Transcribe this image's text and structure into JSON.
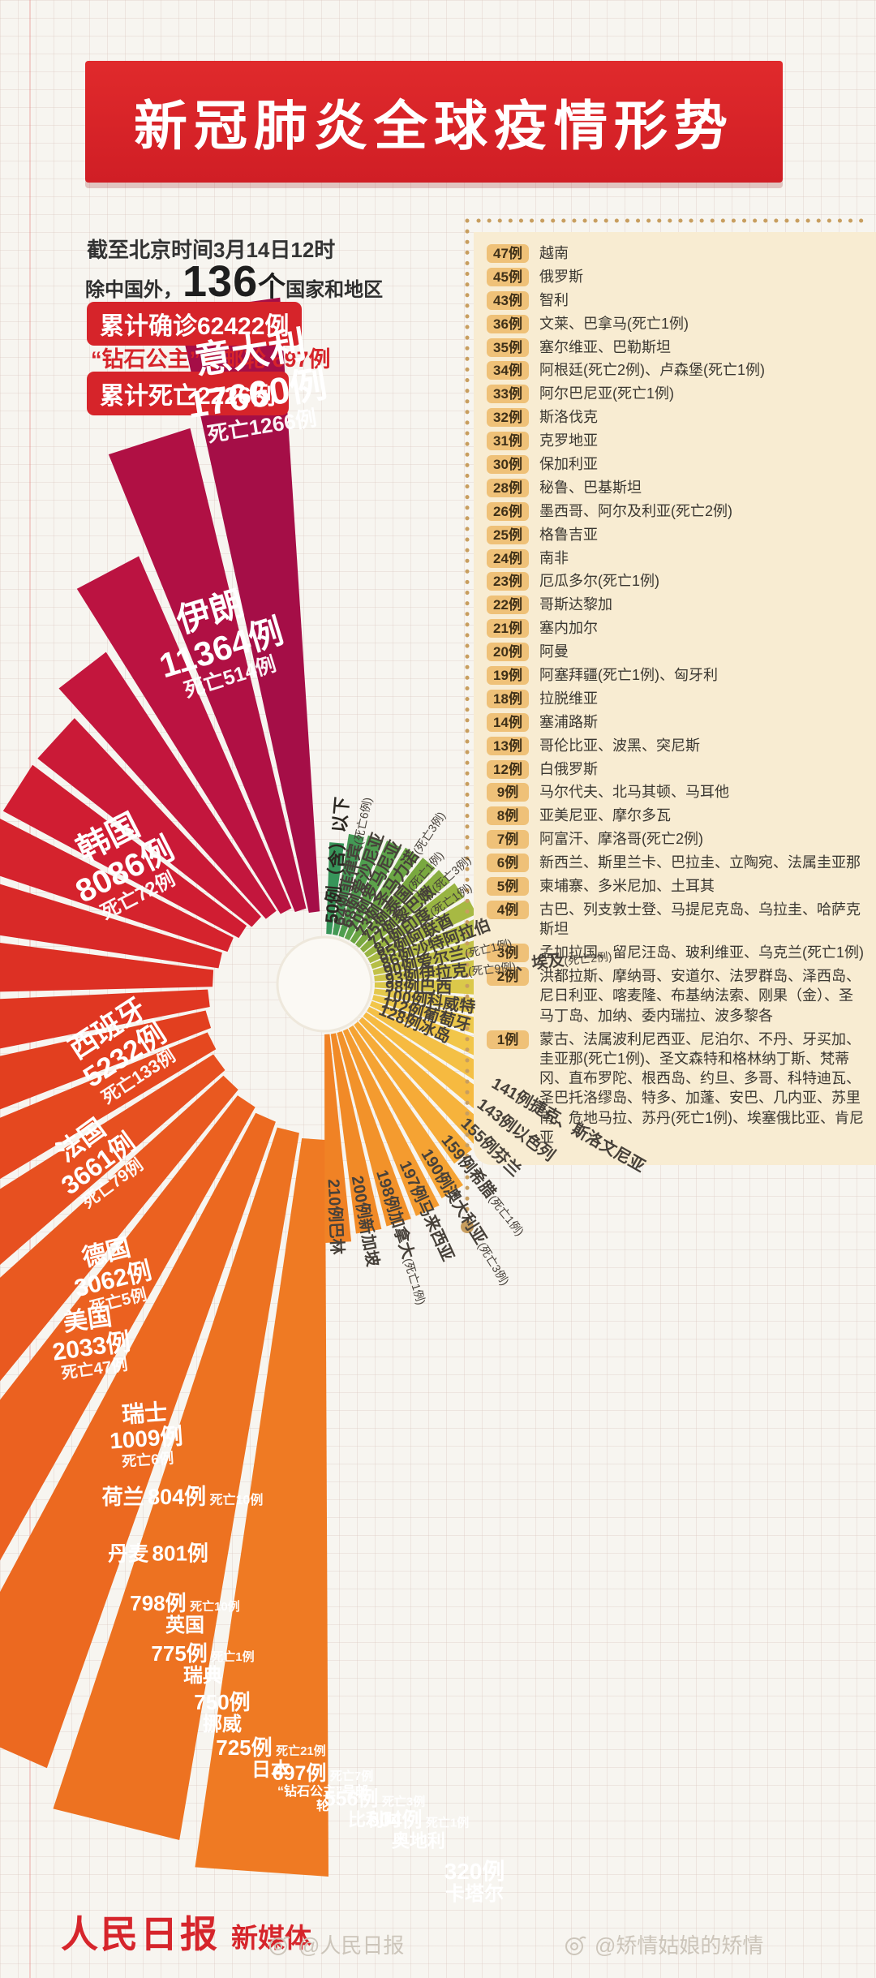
{
  "header": {
    "title": "新冠肺炎全球疫情形势",
    "bg_color": "#D6242A"
  },
  "stats": {
    "as_of": "截至北京时间3月14日12时",
    "except_prefix": "除中国外，",
    "country_count": "136",
    "count_unit": "个",
    "count_suffix": "国家和地区",
    "confirmed_badge": "累计确诊62422例",
    "cruise_line": "“钻石公主”号邮轮 697例",
    "death_badge": "累计死亡2226例",
    "accent_color": "#D6242A"
  },
  "panel": {
    "bg_color": "#F8ECD2",
    "badge_color": "#EFC178",
    "rows": [
      {
        "badge": "47例",
        "text": "越南"
      },
      {
        "badge": "45例",
        "text": "俄罗斯"
      },
      {
        "badge": "43例",
        "text": "智利"
      },
      {
        "badge": "36例",
        "text": "文莱、巴拿马(死亡1例)"
      },
      {
        "badge": "35例",
        "text": "塞尔维亚、巴勒斯坦"
      },
      {
        "badge": "34例",
        "text": "阿根廷(死亡2例)、卢森堡(死亡1例)"
      },
      {
        "badge": "33例",
        "text": "阿尔巴尼亚(死亡1例)"
      },
      {
        "badge": "32例",
        "text": "斯洛伐克"
      },
      {
        "badge": "31例",
        "text": "克罗地亚"
      },
      {
        "badge": "30例",
        "text": "保加利亚"
      },
      {
        "badge": "28例",
        "text": "秘鲁、巴基斯坦"
      },
      {
        "badge": "26例",
        "text": "墨西哥、阿尔及利亚(死亡2例)"
      },
      {
        "badge": "25例",
        "text": "格鲁吉亚"
      },
      {
        "badge": "24例",
        "text": "南非"
      },
      {
        "badge": "23例",
        "text": "厄瓜多尔(死亡1例)"
      },
      {
        "badge": "22例",
        "text": "哥斯达黎加"
      },
      {
        "badge": "21例",
        "text": "塞内加尔"
      },
      {
        "badge": "20例",
        "text": "阿曼"
      },
      {
        "badge": "19例",
        "text": "阿塞拜疆(死亡1例)、匈牙利"
      },
      {
        "badge": "18例",
        "text": "拉脱维亚"
      },
      {
        "badge": "14例",
        "text": "塞浦路斯"
      },
      {
        "badge": "13例",
        "text": "哥伦比亚、波黑、突尼斯"
      },
      {
        "badge": "12例",
        "text": "白俄罗斯"
      },
      {
        "badge": "9例",
        "text": "马尔代夫、北马其顿、马耳他"
      },
      {
        "badge": "8例",
        "text": "亚美尼亚、摩尔多瓦"
      },
      {
        "badge": "7例",
        "text": "阿富汗、摩洛哥(死亡2例)"
      },
      {
        "badge": "6例",
        "text": "新西兰、斯里兰卡、巴拉圭、立陶宛、法属圭亚那"
      },
      {
        "badge": "5例",
        "text": "柬埔寨、多米尼加、土耳其"
      },
      {
        "badge": "4例",
        "text": "古巴、列支敦士登、马提尼克岛、乌拉圭、哈萨克斯坦"
      },
      {
        "badge": "3例",
        "text": "孟加拉国、留尼汪岛、玻利维亚、乌克兰(死亡1例)"
      },
      {
        "badge": "2例",
        "text": "洪都拉斯、摩纳哥、安道尔、法罗群岛、泽西岛、尼日利亚、喀麦隆、布基纳法索、刚果（金）、圣马丁岛、加纳、委内瑞拉、波多黎各"
      },
      {
        "badge": "1例",
        "text": "蒙古、法属波利尼西亚、尼泊尔、不丹、牙买加、圭亚那(死亡1例)、圣文森特和格林纳丁斯、梵蒂冈、直布罗陀、根西岛、约旦、多哥、科特迪瓦、圣巴托洛缪岛、特多、加蓬、安巴、几内亚、苏里南、危地马拉、苏丹(死亡1例)、埃塞俄比亚、肯尼亚"
      }
    ]
  },
  "chart_data": {
    "type": "spiral_fan_chart",
    "title": "新冠肺炎全球疫情形势",
    "unit": "例",
    "major": [
      {
        "name": "意大利",
        "cases": 17660,
        "deaths": 1266
      },
      {
        "name": "伊朗",
        "cases": 11364,
        "deaths": 514
      },
      {
        "name": "韩国",
        "cases": 8086,
        "deaths": 72
      },
      {
        "name": "西班牙",
        "cases": 5232,
        "deaths": 133
      },
      {
        "name": "法国",
        "cases": 3661,
        "deaths": 79
      },
      {
        "name": "德国",
        "cases": 3062,
        "deaths": 5
      },
      {
        "name": "美国",
        "cases": 2033,
        "deaths": 47
      },
      {
        "name": "瑞士",
        "cases": 1009,
        "deaths": 6
      },
      {
        "name": "荷兰",
        "cases": 804,
        "deaths": 10
      },
      {
        "name": "丹麦",
        "cases": 801,
        "deaths": null
      },
      {
        "name": "英国",
        "cases": 798,
        "deaths": 10
      },
      {
        "name": "瑞典",
        "cases": 775,
        "deaths": 1
      },
      {
        "name": "挪威",
        "cases": 750,
        "deaths": null
      },
      {
        "name": "日本",
        "cases": 725,
        "deaths": 21
      },
      {
        "name": "“钻石公主”号邮轮",
        "cases": 697,
        "deaths": 7
      },
      {
        "name": "比利时",
        "cases": 556,
        "deaths": 3
      },
      {
        "name": "奥地利",
        "cases": 504,
        "deaths": 1
      },
      {
        "name": "卡塔尔",
        "cases": 320,
        "deaths": null
      }
    ],
    "minor": [
      {
        "cases": 210,
        "label": "210例巴林"
      },
      {
        "cases": 200,
        "label": "200例新加坡"
      },
      {
        "cases": 198,
        "label": "198例加拿大(死亡1例)"
      },
      {
        "cases": 197,
        "label": "197例马来西亚"
      },
      {
        "cases": 190,
        "label": "190例澳大利亚(死亡3例)"
      },
      {
        "cases": 159,
        "label": "159例希腊(死亡1例)"
      },
      {
        "cases": 155,
        "label": "155例芬兰"
      },
      {
        "cases": 143,
        "label": "143例以色列"
      },
      {
        "cases": 141,
        "label": "141例捷克、斯洛文尼亚"
      },
      {
        "cases": 128,
        "label": "128例冰岛"
      },
      {
        "cases": 112,
        "label": "112例葡萄牙"
      },
      {
        "cases": 100,
        "label": "100例科威特"
      },
      {
        "cases": 98,
        "label": "98例巴西"
      },
      {
        "cases": 93,
        "label": "93例伊拉克(死亡9例)、埃及(死亡2例)"
      },
      {
        "cases": 90,
        "label": "90例爱尔兰(死亡1例)"
      },
      {
        "cases": 86,
        "label": "86例沙特阿拉伯"
      },
      {
        "cases": 85,
        "label": "85例阿联酋"
      },
      {
        "cases": 81,
        "label": "81例印度(死亡1例)"
      },
      {
        "cases": 77,
        "label": "77例黎巴嫩(死亡3例)"
      },
      {
        "cases": 75,
        "label": "75例泰国(死亡1例)"
      },
      {
        "cases": 73,
        "label": "73例圣马力诺(死亡3例)"
      },
      {
        "cases": 70,
        "label": "70例罗马尼亚"
      },
      {
        "cases": 68,
        "label": "68例爱沙尼亚"
      },
      {
        "cases": 64,
        "label": "64例菲律宾(死亡6例)"
      },
      {
        "cases": 50,
        "label": "50例（含）以下"
      }
    ],
    "palette_stops": [
      "#A50E47",
      "#C01440",
      "#D01D32",
      "#DB2B26",
      "#E23E1F",
      "#E85320",
      "#EC6820",
      "#EF7C23",
      "#F29029",
      "#F5A534",
      "#F7B83F",
      "#F2C74A",
      "#DFC94B",
      "#C2C247",
      "#9FB642",
      "#78A83F",
      "#55A04D",
      "#37955A"
    ],
    "legend_position": "none"
  },
  "footer": {
    "brand": "人民日报",
    "brand_suffix": "新媒体",
    "watermark_left": "@人民日报",
    "watermark_right": "@矫情姑娘的矫情"
  }
}
